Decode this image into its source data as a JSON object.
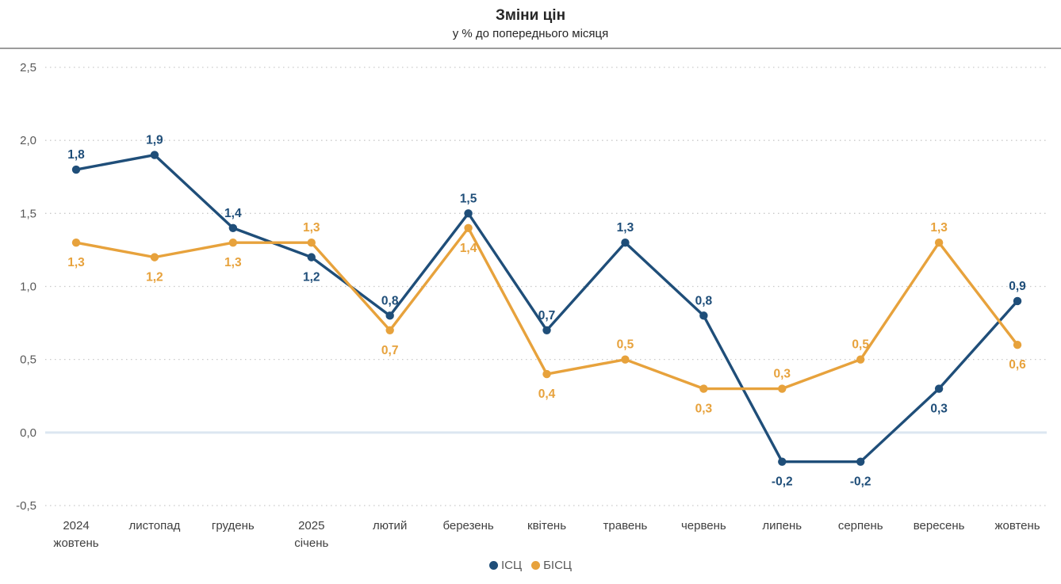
{
  "header": {
    "title": "Зміни цін",
    "subtitle": "у % до попереднього місяця"
  },
  "colors": {
    "icp_blue": "#1f4e79",
    "bicp_orange": "#e7a23c",
    "grid": "#c9c9c9",
    "zero_line": "#dce6f1",
    "axis_text": "#595959",
    "xaxis_text": "#404040",
    "legend_text": "#595959",
    "separator": "#9c9c9c"
  },
  "chart_data": {
    "type": "line",
    "title": "Зміни цін",
    "subtitle": "у % до попереднього місяця",
    "categories": [
      "2024\nжовтень",
      "листопад",
      "грудень",
      "2025\nсічень",
      "лютий",
      "березень",
      "квітень",
      "травень",
      "червень",
      "липень",
      "серпень",
      "вересень",
      "жовтень"
    ],
    "series": [
      {
        "name": "ІСЦ",
        "color": "#1f4e79",
        "values": [
          1.8,
          1.9,
          1.4,
          1.2,
          0.8,
          1.5,
          0.7,
          1.3,
          0.8,
          -0.2,
          -0.2,
          0.3,
          0.9
        ],
        "label_pos": [
          "above",
          "above",
          "above",
          "below",
          "above",
          "above",
          "above",
          "above",
          "above",
          "below",
          "below",
          "below",
          "above"
        ]
      },
      {
        "name": "БІСЦ",
        "color": "#e7a23c",
        "values": [
          1.3,
          1.2,
          1.3,
          1.3,
          0.7,
          1.4,
          0.4,
          0.5,
          0.3,
          0.3,
          0.5,
          1.3,
          0.6
        ],
        "label_pos": [
          "below",
          "below",
          "below",
          "above",
          "below",
          "below",
          "below",
          "above",
          "below",
          "above",
          "above",
          "above",
          "below"
        ]
      }
    ],
    "yticks": [
      2.5,
      2.0,
      1.5,
      1.0,
      0.5,
      0.0,
      -0.5
    ],
    "ylim": [
      -0.5,
      2.5
    ],
    "grid": "dotted",
    "zero_line_solid": true,
    "legend_position": "bottom",
    "decimal_separator": ","
  }
}
